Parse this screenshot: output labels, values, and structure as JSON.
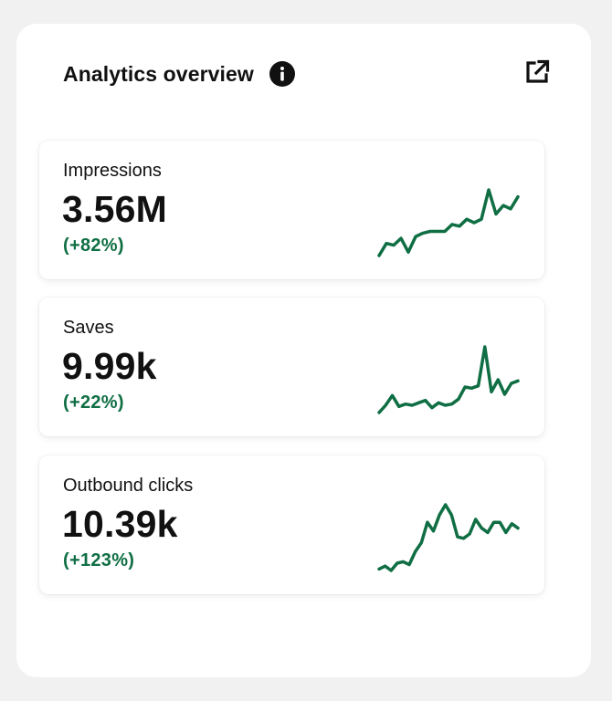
{
  "header": {
    "title": "Analytics overview",
    "info_icon": "info-icon",
    "open_icon": "external-link-icon"
  },
  "colors": {
    "accent": "#0f6e43",
    "card_bg": "#ffffff",
    "page_bg": "#f1f1f1"
  },
  "metrics": [
    {
      "label": "Impressions",
      "value": "3.56M",
      "change": "(+82%)",
      "trend": [
        2,
        9,
        8,
        12,
        4,
        13,
        15,
        16,
        16,
        16,
        20,
        19,
        23,
        21,
        23,
        40,
        26,
        31,
        29,
        36
      ]
    },
    {
      "label": "Saves",
      "value": "9.99k",
      "change": "(+22%)",
      "trend": [
        5,
        11,
        19,
        10,
        12,
        11,
        13,
        15,
        9,
        13,
        11,
        12,
        16,
        26,
        25,
        27,
        59,
        22,
        32,
        20,
        29,
        31
      ]
    },
    {
      "label": "Outbound clicks",
      "value": "10.39k",
      "change": "(+123%)",
      "trend": [
        3,
        5,
        2,
        7,
        8,
        6,
        15,
        21,
        35,
        29,
        40,
        47,
        40,
        25,
        24,
        27,
        37,
        31,
        28,
        35,
        35,
        28,
        34,
        31
      ]
    }
  ]
}
